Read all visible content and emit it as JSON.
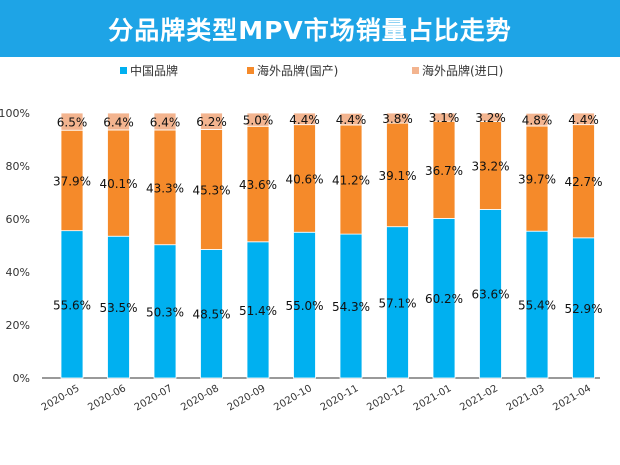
{
  "chart_data": {
    "type": "bar",
    "stacked": true,
    "title": "分品牌类型MPV市场销量占比走势",
    "categories": [
      "2020-05",
      "2020-06",
      "2020-07",
      "2020-08",
      "2020-09",
      "2020-10",
      "2020-11",
      "2020-12",
      "2021-01",
      "2021-02",
      "2021-03",
      "2021-04"
    ],
    "series": [
      {
        "name": "中国品牌",
        "color": "#00b0f0",
        "values": [
          55.6,
          53.5,
          50.3,
          48.5,
          51.4,
          55.0,
          54.3,
          57.1,
          60.2,
          63.6,
          55.4,
          52.9
        ]
      },
      {
        "name": "海外品牌(国产)",
        "color": "#f58a2a",
        "values": [
          37.9,
          40.1,
          43.3,
          45.3,
          43.6,
          40.6,
          41.2,
          39.1,
          36.7,
          33.2,
          39.7,
          42.7
        ]
      },
      {
        "name": "海外品牌(进口)",
        "color": "#f3b48f",
        "values": [
          6.5,
          6.4,
          6.4,
          6.2,
          5.0,
          4.4,
          4.4,
          3.8,
          3.1,
          3.2,
          4.8,
          4.4
        ]
      }
    ],
    "yticks": [
      "0%",
      "20%",
      "40%",
      "60%",
      "80%",
      "100%"
    ],
    "ylim": [
      0,
      100
    ],
    "legend": "top",
    "grid": false
  }
}
